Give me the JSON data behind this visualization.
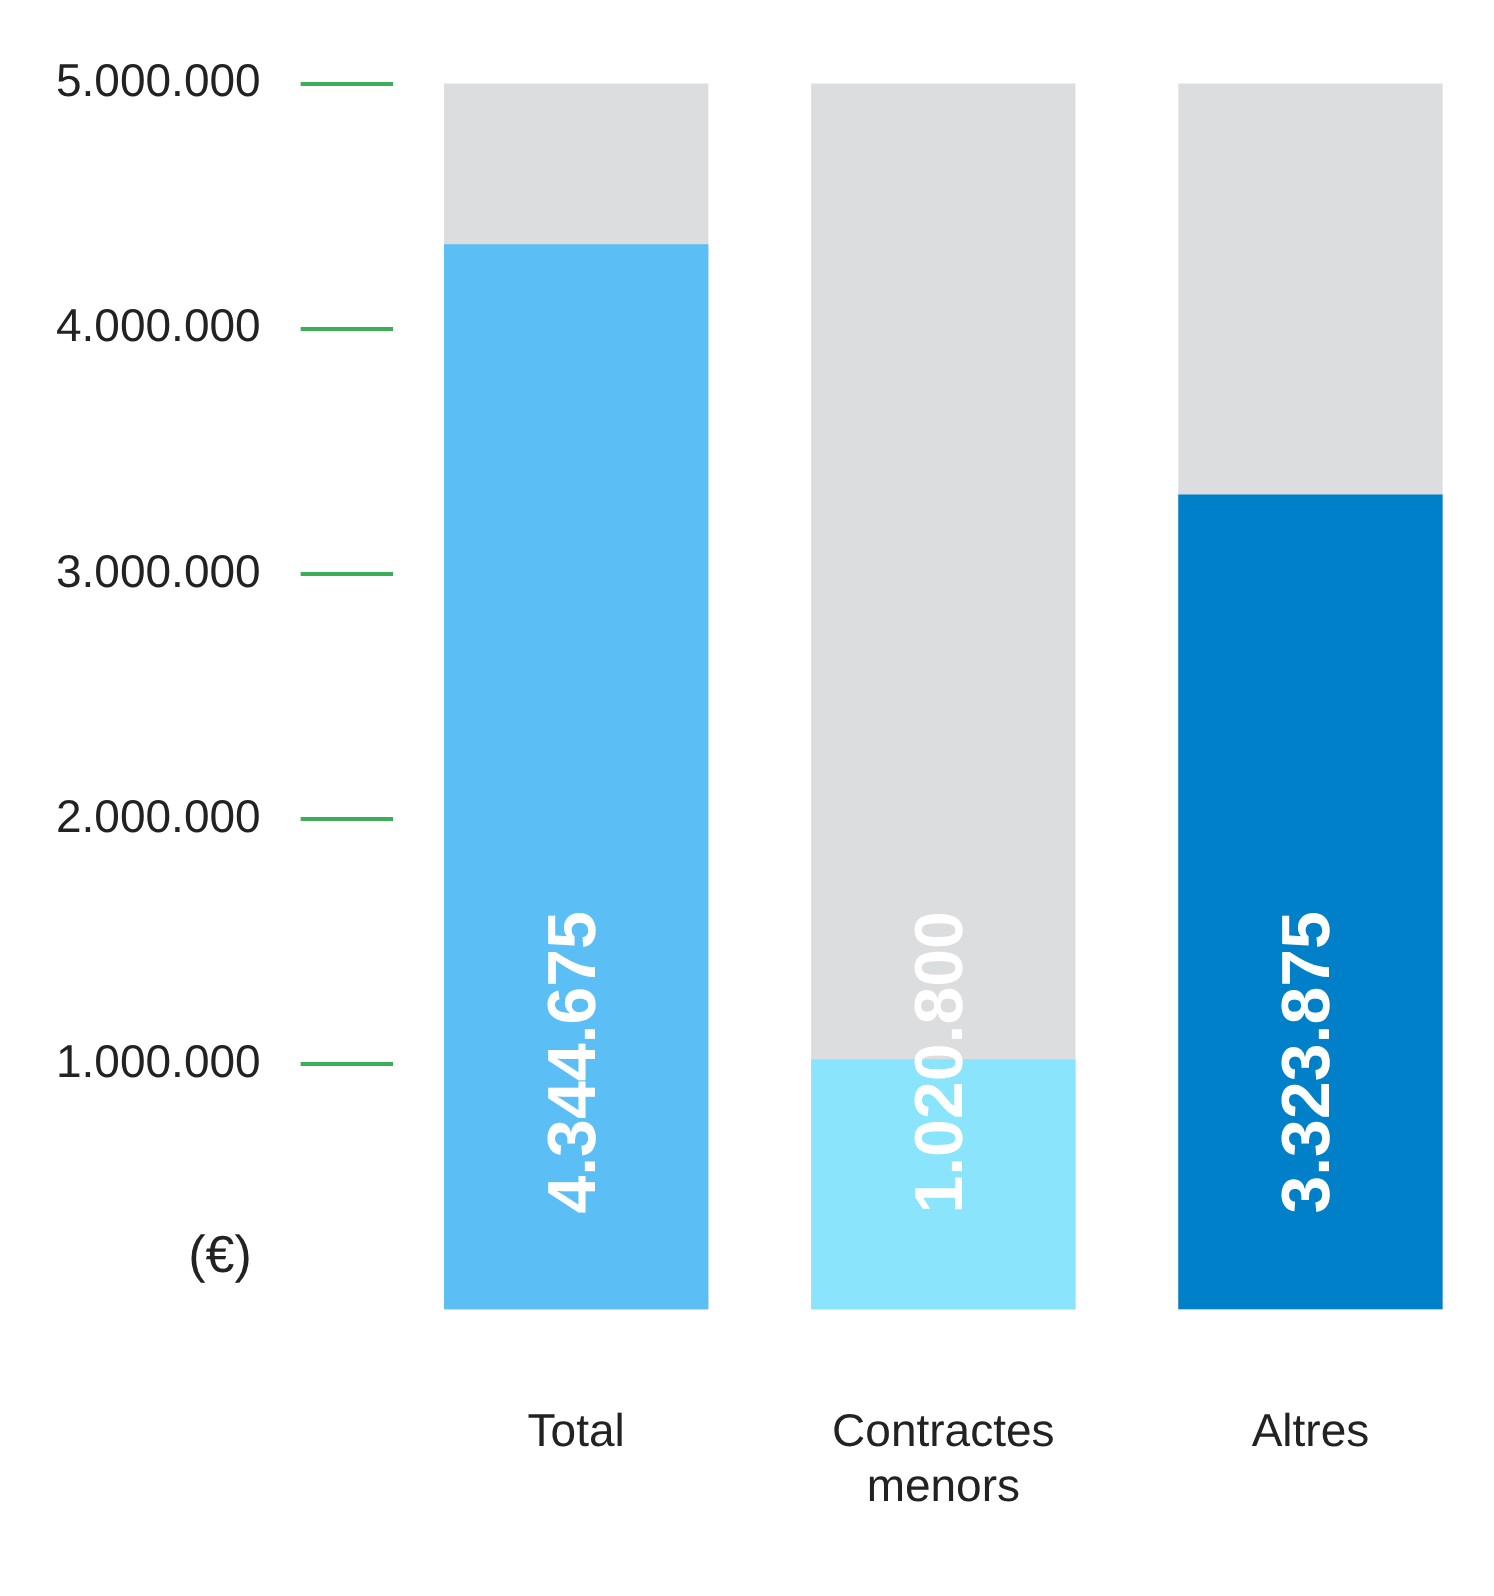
{
  "chart_data": {
    "type": "bar",
    "ylabel": "(€)",
    "categories": [
      "Total",
      "Contractes menors",
      "Altres"
    ],
    "values": [
      4344675,
      1020800,
      3323875
    ],
    "colors": [
      "#5bbff5",
      "#8ae4fc",
      "#0080c8"
    ],
    "value_labels": [
      "4.344.675",
      "1.020.800",
      "3.323.875"
    ],
    "ylim": [
      0,
      5000000
    ],
    "yticks": [
      {
        "value": 1000000,
        "label": "1.000.000"
      },
      {
        "value": 2000000,
        "label": "2.000.000"
      },
      {
        "value": 3000000,
        "label": "3.000.000"
      },
      {
        "value": 4000000,
        "label": "4.000.000"
      },
      {
        "value": 5000000,
        "label": "5.000.000"
      }
    ]
  }
}
